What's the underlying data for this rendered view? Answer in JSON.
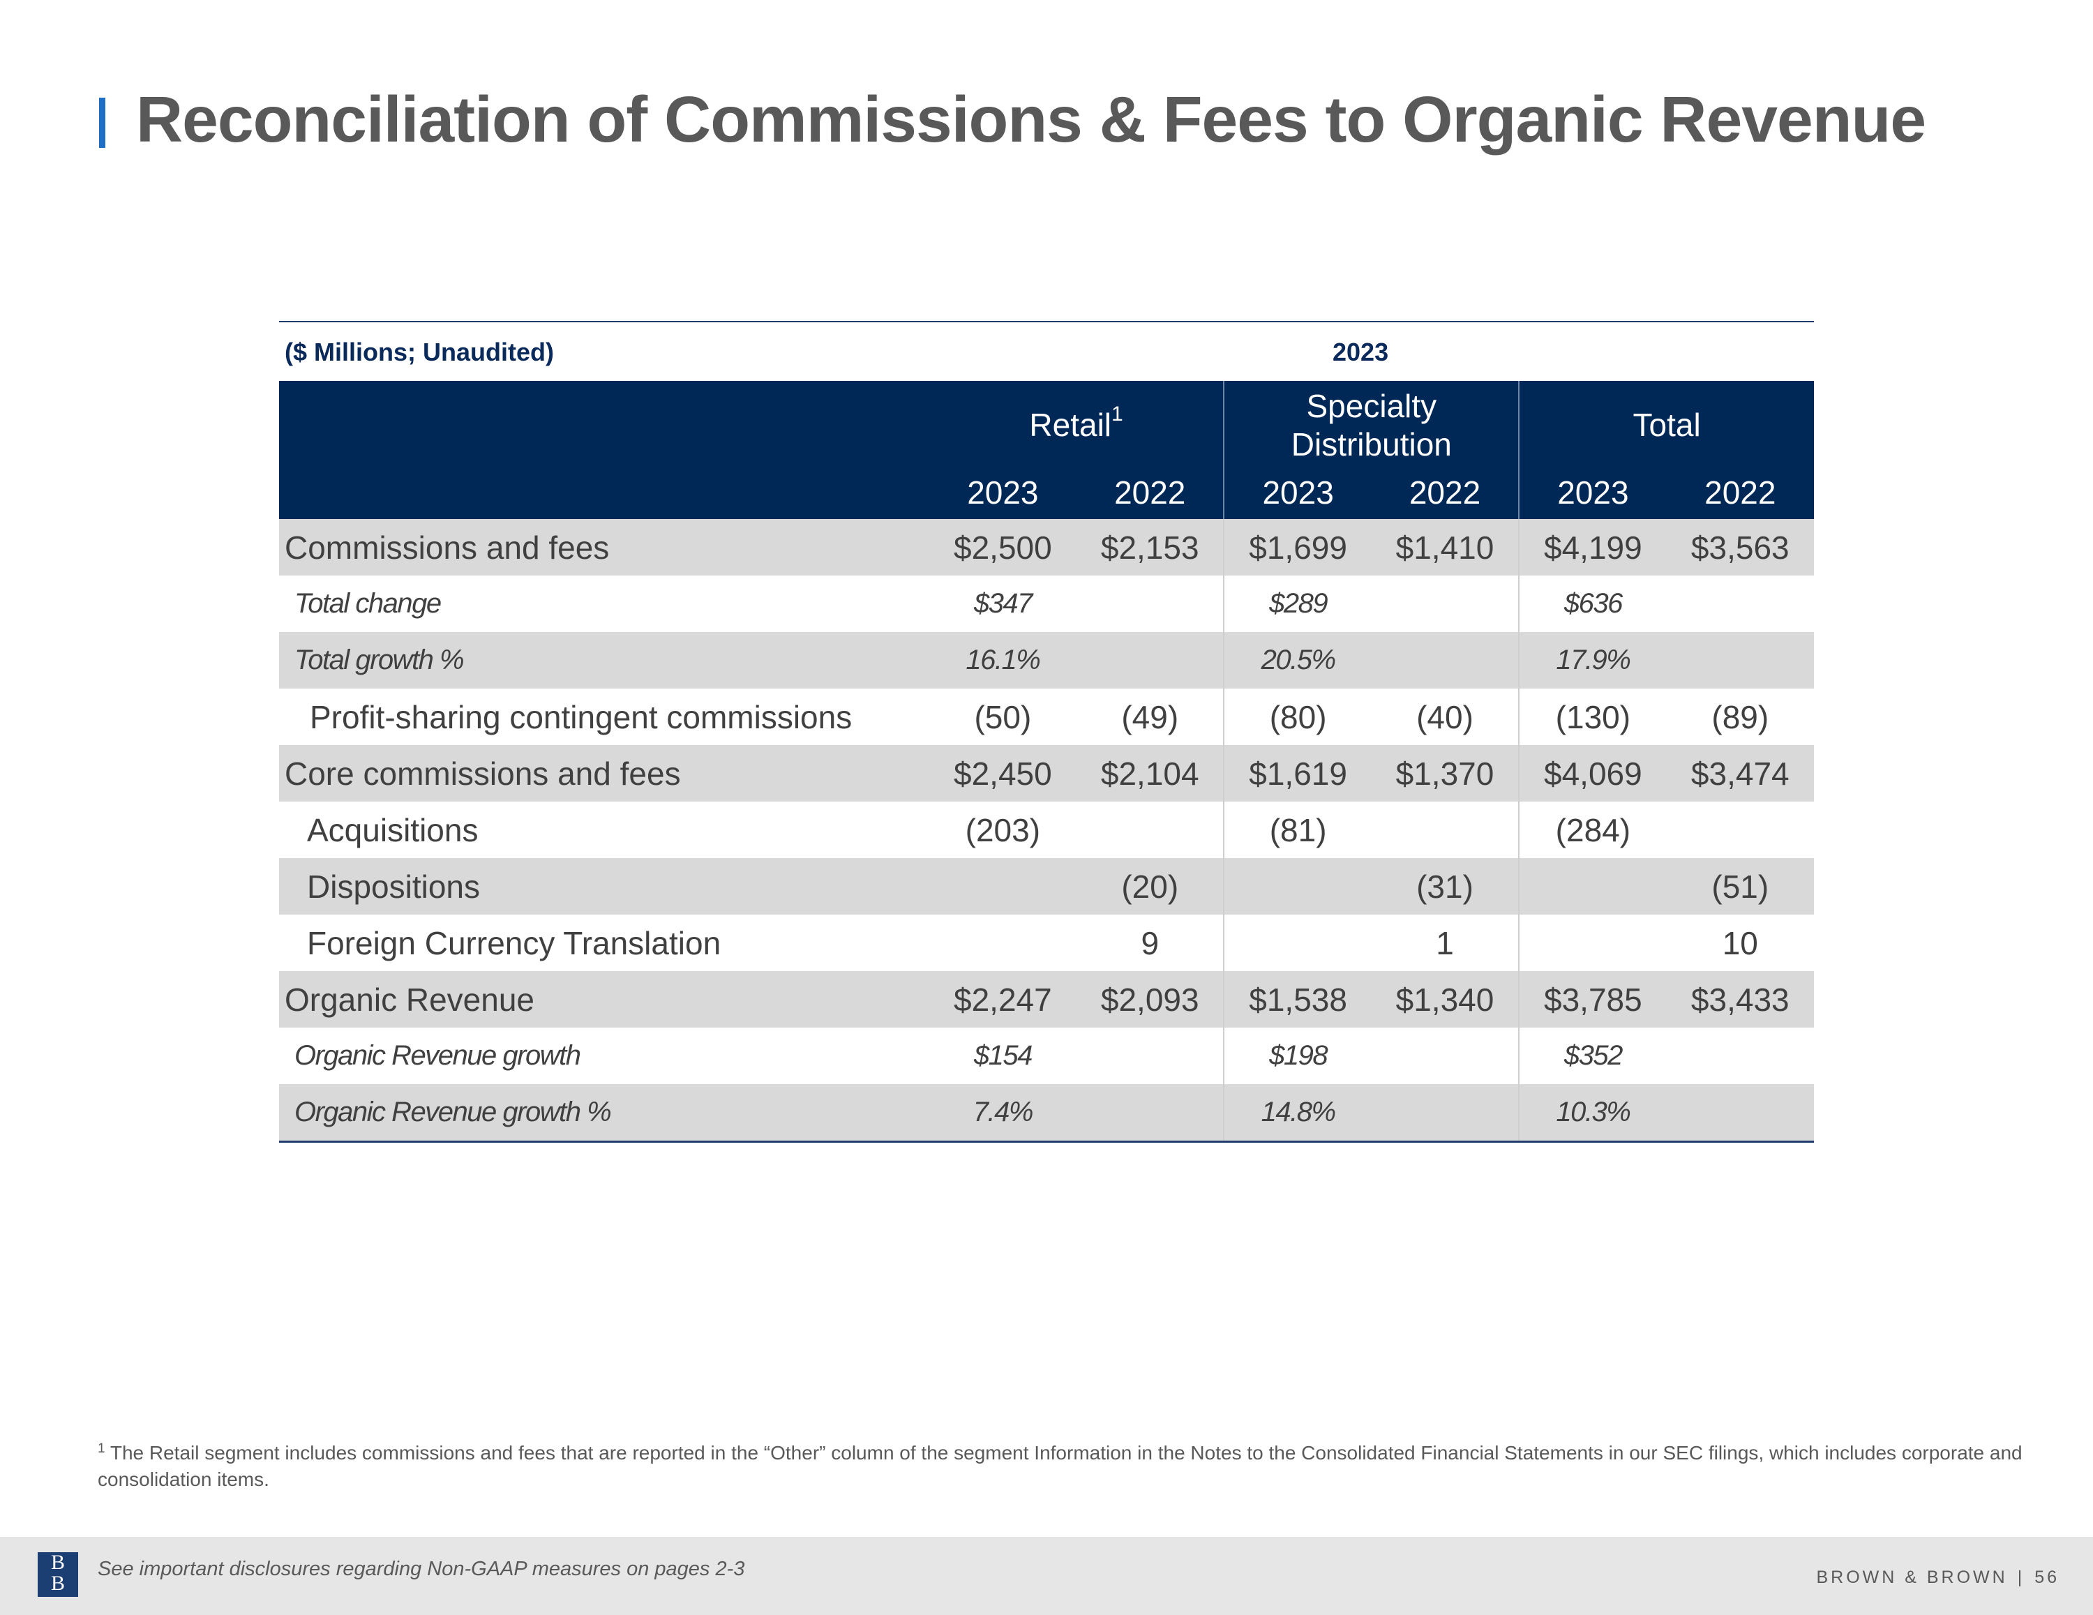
{
  "title": "Reconciliation of Commissions & Fees to Organic Revenue",
  "table": {
    "caption": "($ Millions; Unaudited)",
    "period": "2023",
    "groups": [
      {
        "label": "Retail",
        "sup": "1"
      },
      {
        "label": "Specialty",
        "label2": "Distribution"
      },
      {
        "label": "Total"
      }
    ],
    "years": [
      "2023",
      "2022",
      "2023",
      "2022",
      "2023",
      "2022"
    ],
    "rows": [
      {
        "label": "Commissions and fees",
        "values": [
          "$2,500",
          "$2,153",
          "$1,699",
          "$1,410",
          "$4,199",
          "$3,563"
        ]
      },
      {
        "label": "Total change",
        "values": [
          "$347",
          "",
          "$289",
          "",
          "$636",
          ""
        ]
      },
      {
        "label": "Total growth %",
        "values": [
          "16.1%",
          "",
          "20.5%",
          "",
          "17.9%",
          ""
        ]
      },
      {
        "label": "Profit-sharing contingent commissions",
        "values": [
          "(50)",
          "(49)",
          "(80)",
          "(40)",
          "(130)",
          "(89)"
        ]
      },
      {
        "label": "Core commissions and fees",
        "values": [
          "$2,450",
          "$2,104",
          "$1,619",
          "$1,370",
          "$4,069",
          "$3,474"
        ]
      },
      {
        "label": "Acquisitions",
        "values": [
          "(203)",
          "",
          "(81)",
          "",
          "(284)",
          ""
        ]
      },
      {
        "label": "Dispositions",
        "values": [
          "",
          "(20)",
          "",
          "(31)",
          "",
          "(51)"
        ]
      },
      {
        "label": "Foreign Currency Translation",
        "values": [
          "",
          "9",
          "",
          "1",
          "",
          "10"
        ]
      },
      {
        "label": "Organic Revenue",
        "values": [
          "$2,247",
          "$2,093",
          "$1,538",
          "$1,340",
          "$3,785",
          "$3,433"
        ]
      },
      {
        "label": "Organic Revenue growth",
        "values": [
          "$154",
          "",
          "$198",
          "",
          "$352",
          ""
        ]
      },
      {
        "label": "Organic Revenue growth %",
        "values": [
          "7.4%",
          "",
          "14.8%",
          "",
          "10.3%",
          ""
        ]
      }
    ]
  },
  "footnote": {
    "mark": "1",
    "text": "The Retail segment includes commissions and fees that are reported in the “Other” column of the segment Information in the Notes to the Consolidated Financial Statements in our SEC filings, which includes corporate and consolidation items."
  },
  "footer": {
    "logo_top": "B",
    "logo_bottom": "B",
    "disclosure": "See important disclosures regarding Non-GAAP measures on pages 2-3",
    "brand": "BROWN & BROWN",
    "separator": "|",
    "page_number": "56"
  }
}
